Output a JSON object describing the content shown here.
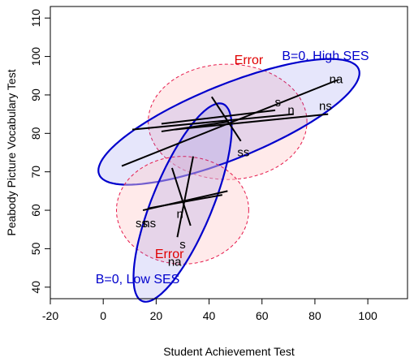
{
  "chart_data": {
    "type": "scatter",
    "title": "",
    "xlabel": "Student Achievement Test",
    "ylabel": "Peabody Picture Vocabulary Test",
    "xlim": [
      -20,
      115
    ],
    "ylim": [
      37,
      113
    ],
    "x_ticks": [
      -20,
      0,
      20,
      40,
      60,
      80,
      100
    ],
    "y_ticks": [
      40,
      50,
      60,
      70,
      80,
      90,
      100,
      110
    ],
    "grid": false,
    "colors": {
      "hypothesis_line": "#0000CC",
      "hypothesis_fill": "#6666E6",
      "error_line": "#E6194B",
      "error_fill": "#FFD0D0",
      "error_text": "#E00000",
      "hypothesis_text": "#0000CC"
    },
    "ellipses": [
      {
        "label": "Error",
        "type": "error",
        "center": [
          47,
          83
        ],
        "rx": 30,
        "ry": 15,
        "angle_deg": 0,
        "label_pos": [
          55,
          99
        ]
      },
      {
        "label": "B=0, High SES",
        "type": "hypothesis",
        "center": [
          47.5,
          83
        ],
        "rx": 51,
        "ry": 10,
        "angle_deg": 15,
        "label_pos": [
          84,
          100
        ]
      },
      {
        "label": "Error",
        "type": "error",
        "center": [
          30,
          60
        ],
        "rx": 25,
        "ry": 14,
        "angle_deg": 0,
        "label_pos": [
          25,
          48.5
        ]
      },
      {
        "label": "B=0, Low SES",
        "type": "hypothesis",
        "center": [
          30,
          62
        ],
        "rx": 30,
        "ry": 10.5,
        "angle_deg": 57,
        "label_pos": [
          13,
          42
        ]
      }
    ],
    "series": [
      {
        "name": "High SES",
        "center": [
          47,
          83
        ],
        "variables": [
          {
            "label": "na",
            "end": [
              89,
              94
            ],
            "label_pos": [
              88,
              94
            ]
          },
          {
            "label": "s",
            "end": [
              65,
              86
            ],
            "label_pos": [
              66,
              88
            ]
          },
          {
            "label": "n",
            "end": [
              72,
              85
            ],
            "label_pos": [
              71,
              86
            ]
          },
          {
            "label": "ns",
            "end": [
              85,
              85
            ],
            "label_pos": [
              84,
              87
            ]
          },
          {
            "label": "ss",
            "end": [
              52,
              78
            ],
            "label_pos": [
              53,
              75
            ]
          }
        ],
        "segments": [
          [
            [
              7,
              71.5
            ],
            [
              89,
              94
            ]
          ],
          [
            [
              11,
              81
            ],
            [
              72,
              85
            ]
          ],
          [
            [
              22,
              82.5
            ],
            [
              65,
              86
            ]
          ],
          [
            [
              27,
              81
            ],
            [
              85,
              85
            ]
          ],
          [
            [
              41,
              89.5
            ],
            [
              52,
              78
            ]
          ],
          [
            [
              22,
              80.5
            ],
            [
              47,
              83
            ]
          ]
        ]
      },
      {
        "name": "Low SES",
        "center": [
          30,
          63
        ],
        "variables": [
          {
            "label": "na",
            "end": [
              24,
              48
            ],
            "label_pos": [
              27,
              46.5
            ]
          },
          {
            "label": "s",
            "end": [
              30,
              53
            ],
            "label_pos": [
              30,
              51
            ]
          },
          {
            "label": "n",
            "end": [
              28,
              58
            ],
            "label_pos": [
              29,
              59
            ]
          },
          {
            "label": "ss",
            "end": [
              15,
              58
            ],
            "label_pos": [
              14.5,
              56.5
            ]
          },
          {
            "label": "ns",
            "end": [
              14,
              58
            ],
            "label_pos": [
              17.5,
              56.5
            ]
          }
        ],
        "segments": [
          [
            [
              15,
              60
            ],
            [
              47,
              65
            ]
          ],
          [
            [
              28,
              53
            ],
            [
              34,
              74
            ]
          ],
          [
            [
              26,
              71
            ],
            [
              33,
              56
            ]
          ],
          [
            [
              17,
              60.5
            ],
            [
              45,
              64
            ]
          ]
        ]
      }
    ]
  }
}
